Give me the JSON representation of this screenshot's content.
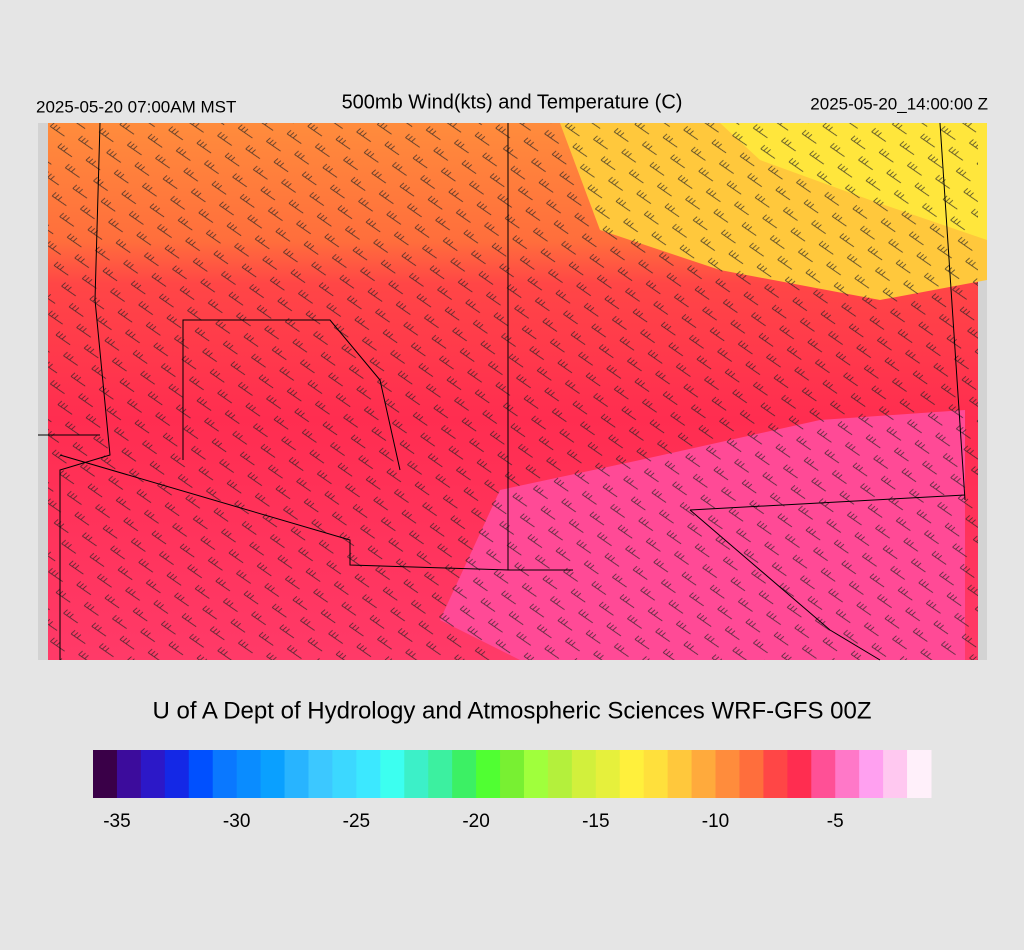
{
  "header": {
    "left": "2025-05-20 07:00AM MST",
    "title": "500mb Wind(kts) and Temperature (C)",
    "right": "2025-05-20_14:00:00 Z"
  },
  "credit": "U of A Dept of Hydrology and Atmospheric Sciences WRF-GFS 00Z",
  "colorbar": {
    "range": [
      -36,
      -1
    ],
    "ticks": [
      -35,
      -30,
      -25,
      -20,
      -15,
      -10,
      -5
    ],
    "colors": [
      "#3a0048",
      "#3c0c9c",
      "#2c18c8",
      "#1428e6",
      "#0050ff",
      "#0a78ff",
      "#0a8cff",
      "#0aa0ff",
      "#28b4ff",
      "#3cc8ff",
      "#3cd8ff",
      "#3ce8ff",
      "#3cfff0",
      "#3cf0c8",
      "#3cf0a0",
      "#3cf064",
      "#50ff32",
      "#78f032",
      "#a0ff3c",
      "#b4f03c",
      "#d2f03c",
      "#e6f03c",
      "#fff03c",
      "#ffe03c",
      "#ffc83c",
      "#ffaa3c",
      "#ff8c3c",
      "#ff6e3c",
      "#ff4646",
      "#ff2d50",
      "#ff5096",
      "#ff78c8",
      "#ffa0f0",
      "#ffc8f0",
      "#fff0fa"
    ]
  }
}
